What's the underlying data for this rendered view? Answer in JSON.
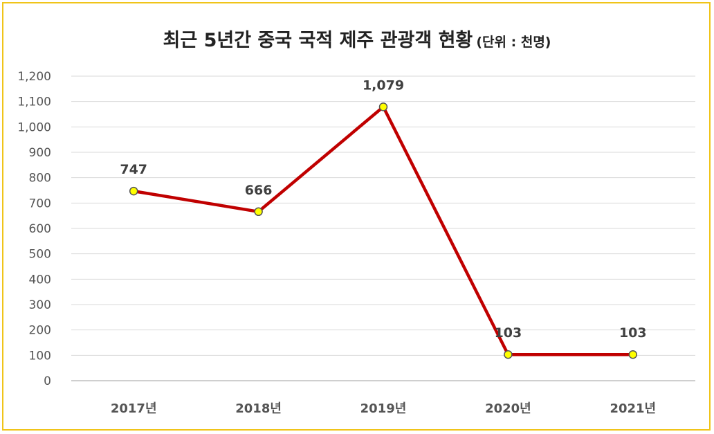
{
  "chart_data": {
    "type": "line",
    "title": "최근 5년간 중국 국적 제주 관광객 현황",
    "unit_note": "(단위 : 천명)",
    "categories": [
      "2017년",
      "2018년",
      "2019년",
      "2020년",
      "2021년"
    ],
    "series": [
      {
        "values": [
          747,
          666,
          1079,
          103,
          103
        ],
        "data_labels": [
          "747",
          "666",
          "1,079",
          "103",
          "103"
        ]
      }
    ],
    "y_ticks": [
      "0",
      "100",
      "200",
      "300",
      "400",
      "500",
      "600",
      "700",
      "800",
      "900",
      "1,000",
      "1,100",
      "1,200"
    ],
    "ylim": [
      0,
      1200
    ],
    "grid": true,
    "legend": "none"
  },
  "colors": {
    "frame_border": "#f0c419",
    "line": "#c00000",
    "marker_fill": "#ffff00",
    "marker_stroke": "#555555",
    "gridline": "#d9d9d9",
    "axis": "#bfbfbf"
  }
}
